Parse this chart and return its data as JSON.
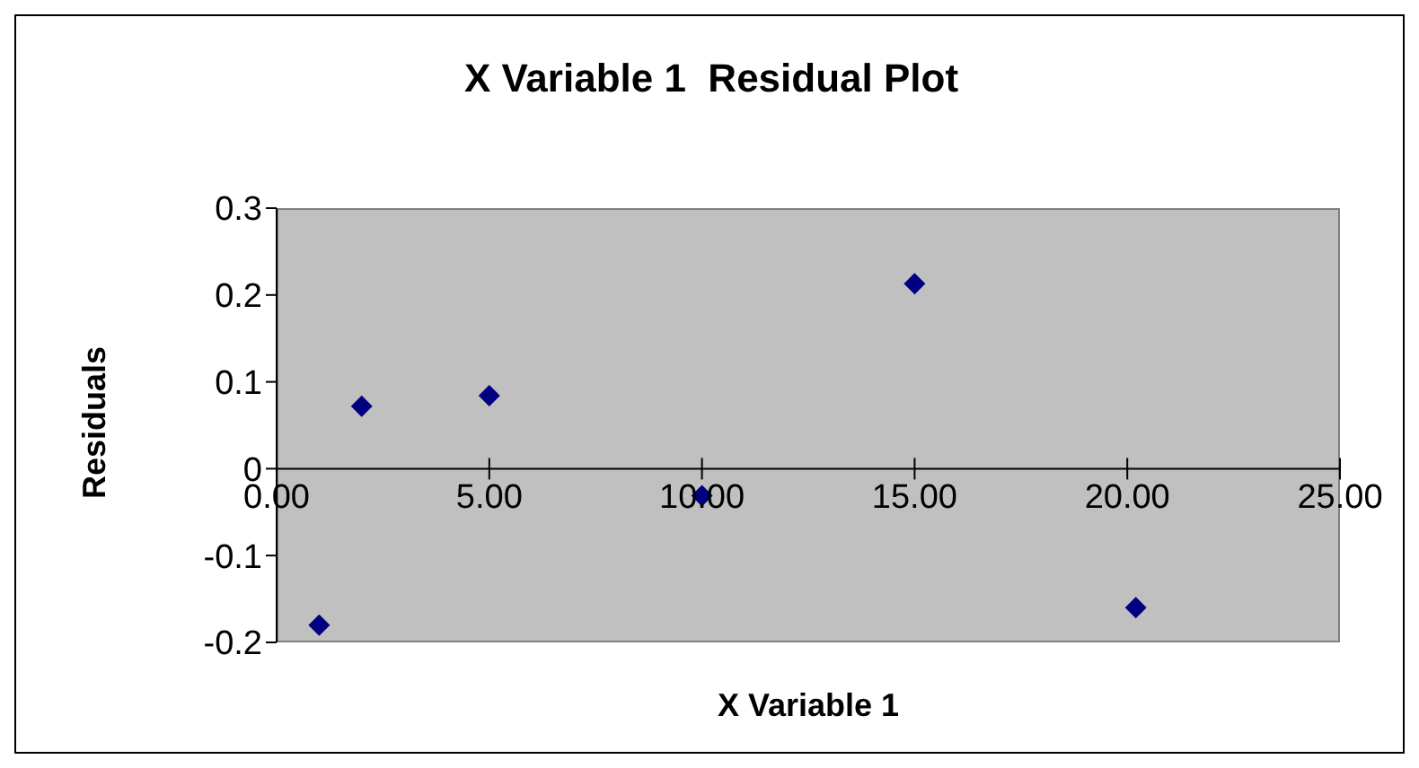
{
  "chart_data": {
    "type": "scatter",
    "title": "X Variable 1  Residual Plot",
    "xlabel": "X Variable 1",
    "ylabel": "Residuals",
    "x": [
      1,
      2,
      5,
      10,
      15,
      20.2
    ],
    "values": [
      -0.18,
      0.072,
      0.084,
      -0.031,
      0.213,
      -0.16
    ],
    "color": "#000080",
    "marker": "diamond",
    "xlim": [
      0,
      25
    ],
    "xticks": [
      {
        "value": 0,
        "label": "0.00"
      },
      {
        "value": 5,
        "label": "5.00"
      },
      {
        "value": 10,
        "label": "10.00"
      },
      {
        "value": 15,
        "label": "15.00"
      },
      {
        "value": 20,
        "label": "20.00"
      },
      {
        "value": 25,
        "label": "25.00"
      }
    ],
    "ylim": [
      -0.2,
      0.3
    ],
    "yticks": [
      -0.2,
      -0.1,
      0,
      0.1,
      0.2,
      0.3
    ],
    "grid": false,
    "legend": false
  }
}
